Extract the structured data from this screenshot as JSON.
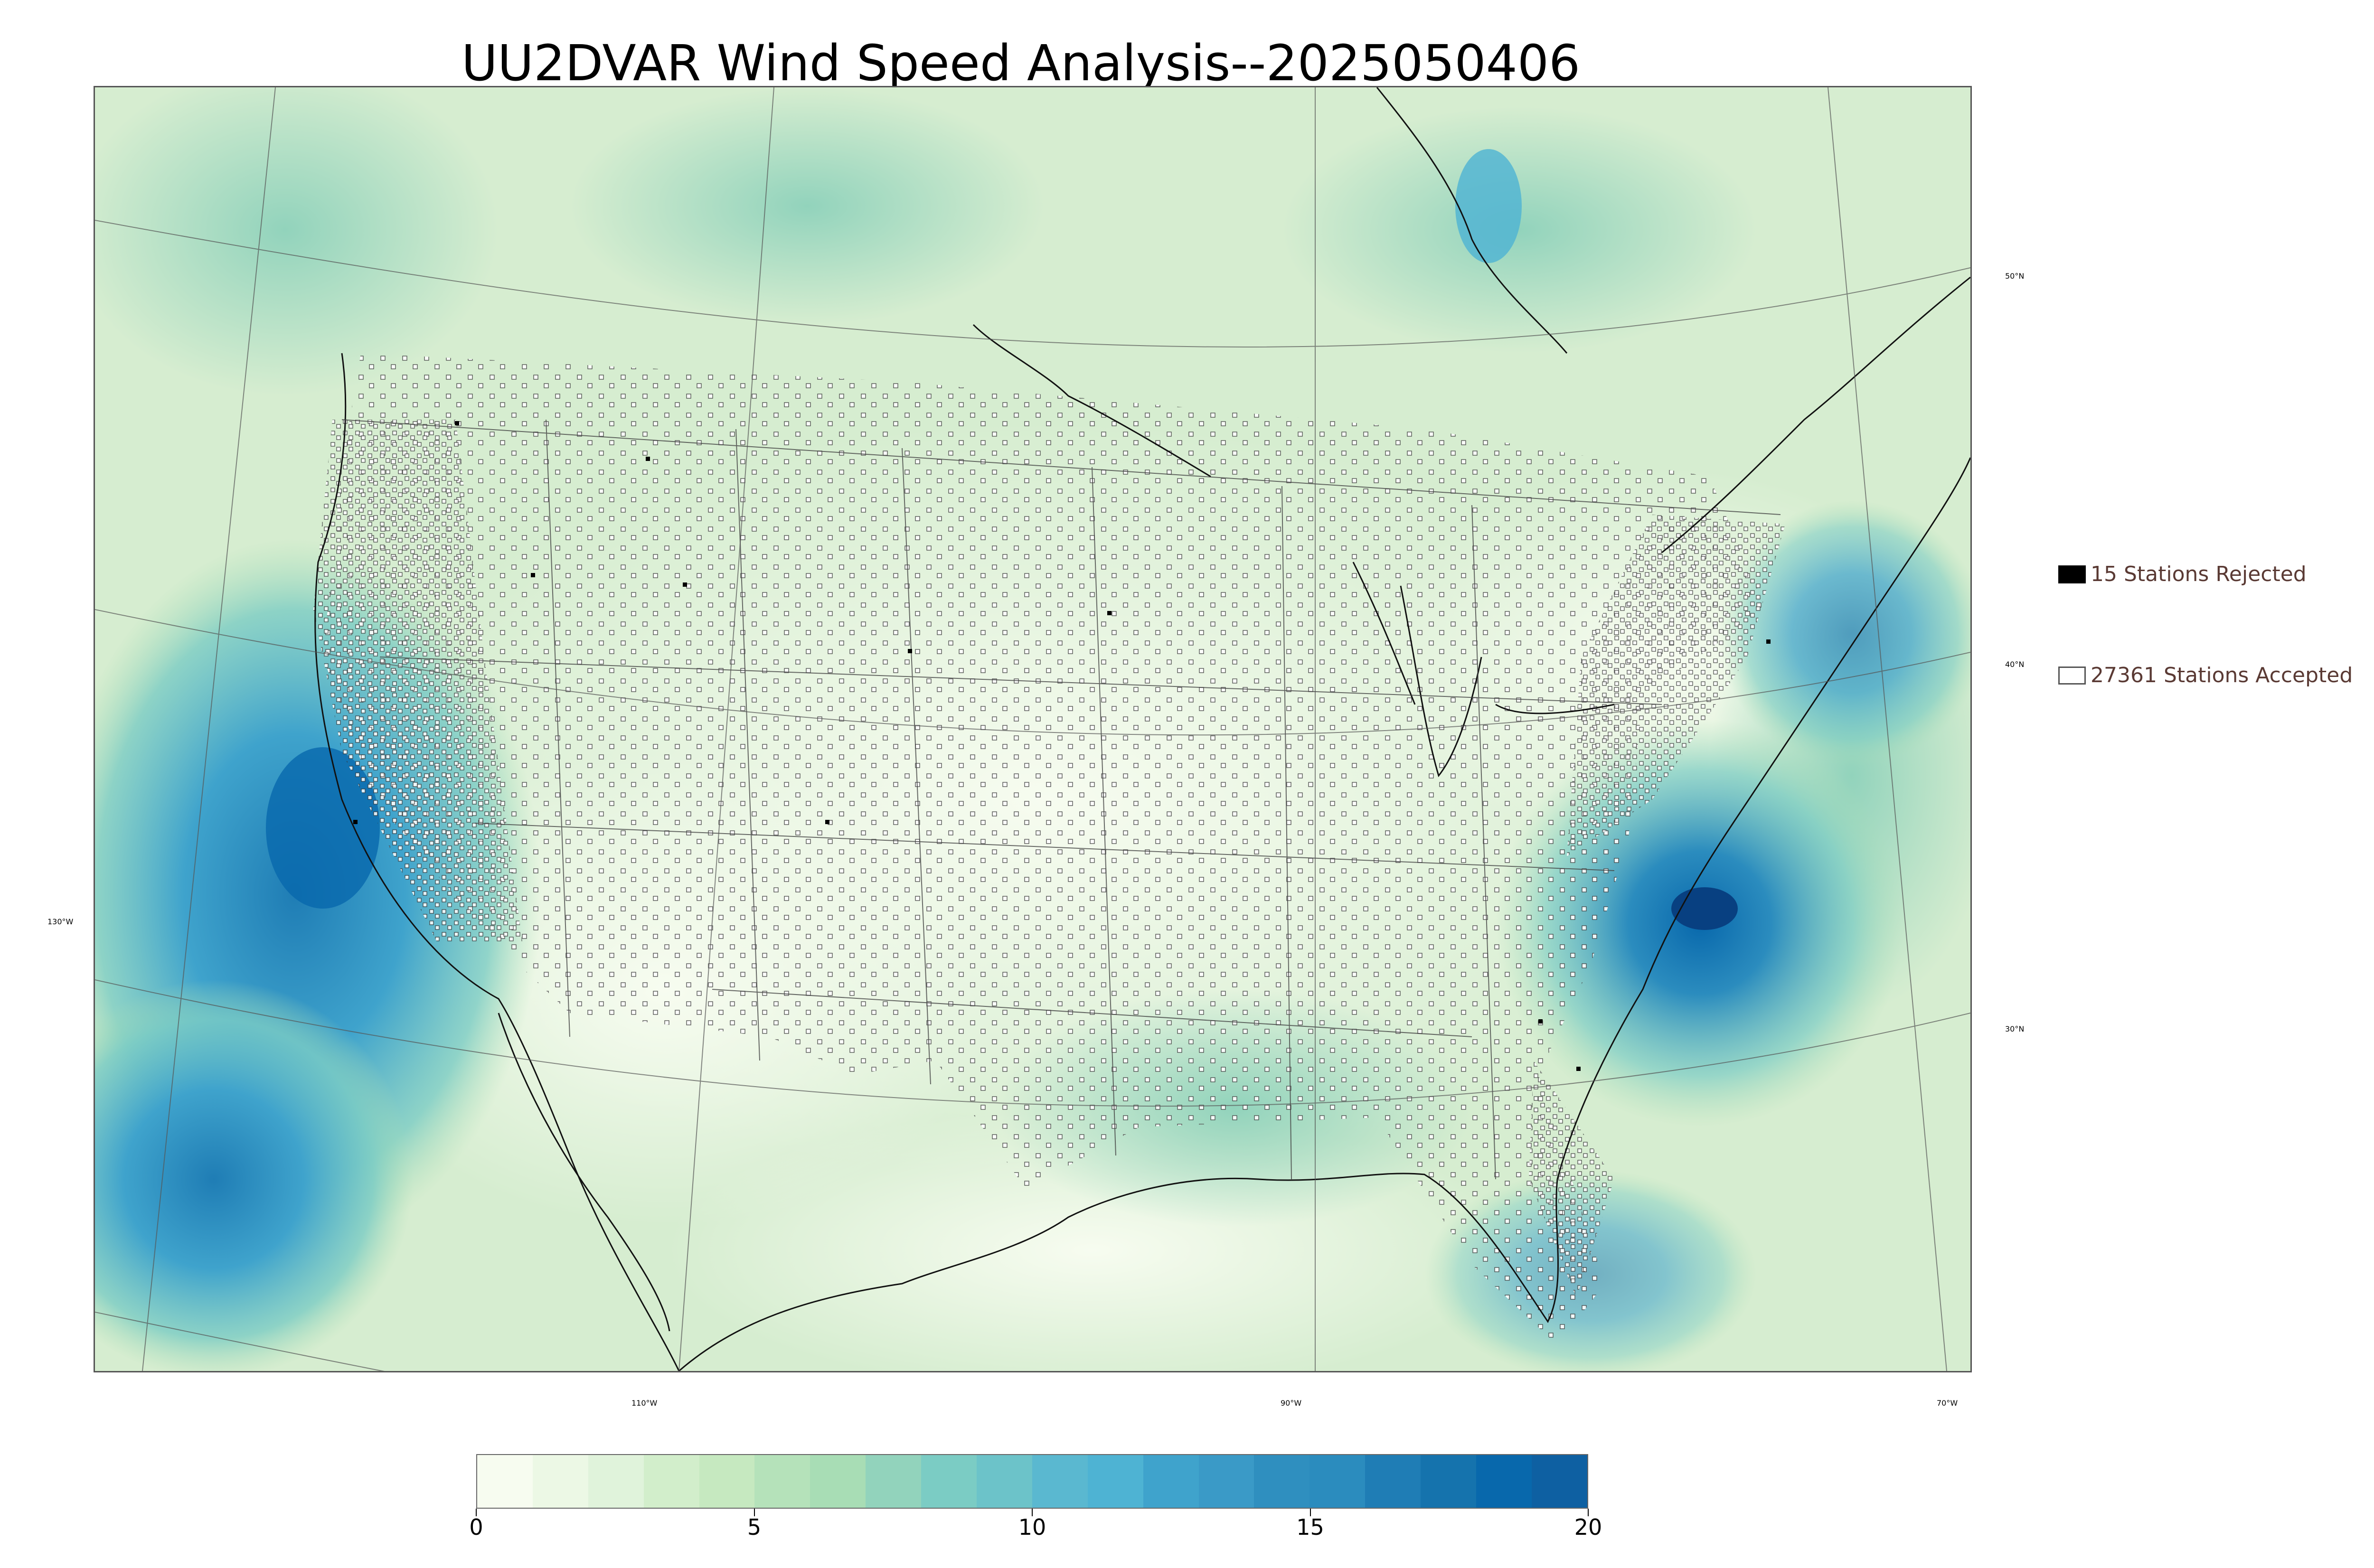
{
  "title": "UU2DVAR Wind Speed Analysis--2025050406",
  "map": {
    "lat_labels": [
      "50°N",
      "40°N",
      "30°N"
    ],
    "lon_labels": [
      "130°W",
      "110°W",
      "90°W",
      "70°W"
    ]
  },
  "legend": {
    "rejected_label": "15 Stations Rejected",
    "accepted_label": "27361 Stations Accepted"
  },
  "colorbar": {
    "min": 0,
    "max": 20,
    "tick_labels": [
      "0",
      "5",
      "10",
      "15",
      "20"
    ],
    "colors": [
      "#f7fcf0",
      "#ecf8e5",
      "#e0f3db",
      "#d2eecb",
      "#c6e9c0",
      "#b5e2ba",
      "#a8ddb5",
      "#92d3bc",
      "#7bccc4",
      "#6cc3c9",
      "#5ab8d0",
      "#4eb3d3",
      "#3fa3cc",
      "#3a9ac7",
      "#2f8fbf",
      "#2b8cbe",
      "#1f7db5",
      "#1573ad",
      "#0868ac",
      "#0e60a2"
    ]
  },
  "colors": {
    "title": "#000000",
    "legend_text": "#5a3a34",
    "land_base": "#dcefd6",
    "ocean_high": "#2b8cbe"
  }
}
